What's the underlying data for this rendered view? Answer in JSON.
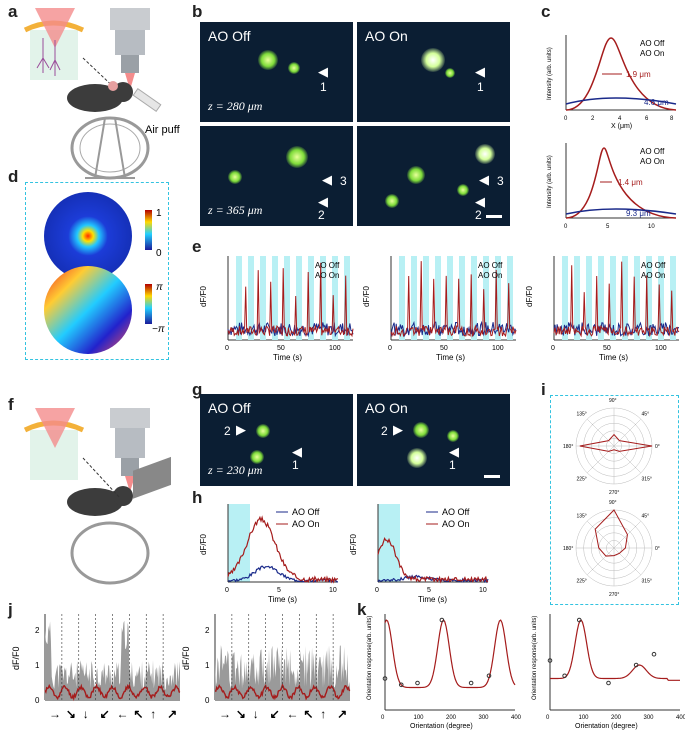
{
  "panels": {
    "a": "a",
    "b": "b",
    "c": "c",
    "d": "d",
    "e": "e",
    "f": "f",
    "g": "g",
    "h": "h",
    "i": "i",
    "j": "j",
    "k": "k"
  },
  "schematic": {
    "air_puff": "Air puff"
  },
  "micro_titles": {
    "off": "AO Off",
    "on": "AO On"
  },
  "depths": {
    "b_top": "z = 280 μm",
    "b_bottom": "z = 365 μm",
    "g": "z = 230 μm"
  },
  "cell_labels": {
    "one": "1",
    "two": "2",
    "three": "3"
  },
  "colorbar": {
    "amp_max": "1",
    "amp_min": "0",
    "phase_max": "π",
    "phase_min": "−π"
  },
  "profile": {
    "ylabel": "Intensity (arb. units)",
    "xlabel": "X (μm)",
    "legend_off": "AO Off",
    "legend_on": "AO On",
    "top_fwhm_on": "1.9 μm",
    "top_fwhm_off": "4.6 μm",
    "bottom_fwhm_on": "1.4 μm",
    "bottom_fwhm_off": "9.3 μm",
    "top_xticks": [
      "0",
      "2",
      "4",
      "6",
      "8"
    ],
    "bottom_xticks": [
      "0",
      "5",
      "10"
    ],
    "yticks": [
      "0",
      "0.5",
      "1"
    ]
  },
  "traces": {
    "ylabel": "dF/F0",
    "xlabel": "Time (s)",
    "e_xticks": [
      "0",
      "50",
      "100"
    ],
    "e_yticks": [
      "0",
      "0.5",
      "1.0",
      "1.5",
      "2.0",
      "2.5"
    ],
    "e2_yticks": [
      "0",
      "1",
      "2"
    ],
    "h_xticks": [
      "0",
      "5",
      "10"
    ],
    "h_yticks": [
      "0",
      "1",
      "2"
    ],
    "legend_off": "AO Off",
    "legend_on": "AO On"
  },
  "polar": {
    "angles": [
      "90°",
      "45°",
      "0°",
      "315°",
      "270°",
      "225°",
      "180°",
      "135°"
    ],
    "radii": [
      "0.2",
      "0.4",
      "0.6",
      "0.8",
      "1"
    ]
  },
  "tuning": {
    "ylabel": "dF/F0",
    "yticks": [
      "0",
      "1",
      "2"
    ],
    "arrows": [
      "→",
      "↘",
      "↓",
      "↙",
      "←",
      "↖",
      "↑",
      "↗"
    ]
  },
  "orientation": {
    "ylabel": "Orientation response(arb. units)",
    "xlabel": "Orientation (degree)",
    "xticks": [
      "0",
      "50",
      "100",
      "150",
      "200",
      "250",
      "300",
      "350",
      "400"
    ],
    "yticks": [
      "0",
      "0.2",
      "0.4",
      "0.6",
      "0.8",
      "1.0"
    ]
  },
  "colors": {
    "on": "#a51c1c",
    "off": "#1a2a8a",
    "cyan": "#b8f0f4",
    "frame": "#33c3e0"
  }
}
